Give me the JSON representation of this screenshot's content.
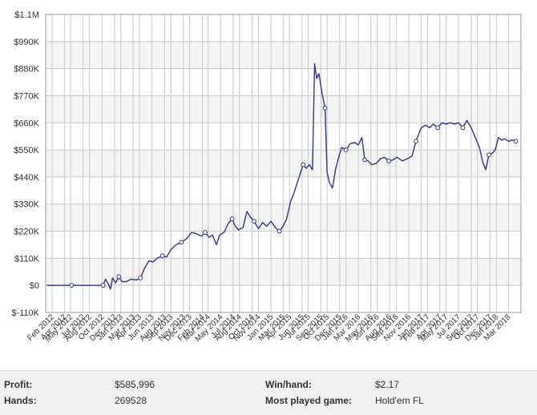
{
  "chart_data": {
    "type": "line",
    "title": "",
    "xlabel": "",
    "ylabel": "",
    "ylim": [
      -110000,
      1100000
    ],
    "xlim": [
      "2012-01-15",
      "2018-05-15"
    ],
    "yticks": [
      -110000,
      0,
      110000,
      220000,
      330000,
      440000,
      550000,
      660000,
      770000,
      880000,
      990000,
      1100000
    ],
    "ytick_labels": [
      "$-110K",
      "$0",
      "$110K",
      "$220K",
      "$330K",
      "$440K",
      "$550K",
      "$660K",
      "$770K",
      "$880K",
      "$990K",
      "$1.1M"
    ],
    "xticks": [
      "2012-02",
      "2012-04",
      "2012-05",
      "2012-07",
      "2012-08",
      "2012-10",
      "2012-12",
      "2013-01",
      "2013-03",
      "2013-04",
      "2013-06",
      "2013-08",
      "2013-09",
      "2013-11",
      "2013-12",
      "2014-02",
      "2014-03",
      "2014-05",
      "2014-07",
      "2014-08",
      "2014-10",
      "2014-11",
      "2015-01",
      "2015-03",
      "2015-04",
      "2015-06",
      "2015-07",
      "2015-09",
      "2015-10",
      "2015-12",
      "2016-01",
      "2016-03",
      "2016-05",
      "2016-06",
      "2016-08",
      "2016-09",
      "2016-11",
      "2017-01",
      "2017-02",
      "2017-04",
      "2017-05",
      "2017-07",
      "2017-09",
      "2017-10",
      "2017-12",
      "2018-01",
      "2018-03"
    ],
    "xtick_labels": [
      "Feb 2012",
      "Apr 2012",
      "May 2012",
      "Jul 2012",
      "Aug 2012",
      "Oct 2012",
      "Dec 2012",
      "Jan 2013",
      "Mar 2013",
      "Apr 2013",
      "Jun 2013",
      "Aug 2013",
      "Sep 2013",
      "Nov 2013",
      "Dec 2013",
      "Feb 2014",
      "Mar 2014",
      "May 2014",
      "Jul 2014",
      "Aug 2014",
      "Oct 2014",
      "Nov 2014",
      "Jan 2015",
      "Mar 2015",
      "Apr 2015",
      "Jun 2015",
      "Jul 2015",
      "Sep 2015",
      "Oct 2015",
      "Dec 2015",
      "Jan 2016",
      "Mar 2016",
      "May 2016",
      "Jun 2016",
      "Aug 2016",
      "Sep 2016",
      "Nov 2016",
      "Jan 2017",
      "Feb 2017",
      "Apr 2017",
      "May 2017",
      "Jul 2017",
      "Sep 2017",
      "Oct 2017",
      "Dec 2017",
      "Jan 2018",
      "Mar 2018"
    ],
    "grid": true,
    "legend": "none",
    "series": [
      {
        "name": "",
        "color": "#33338f",
        "points": [
          [
            "2012-01-20",
            0
          ],
          [
            "2012-05-20",
            0
          ],
          [
            "2012-10-20",
            0
          ],
          [
            "2012-11-01",
            25000
          ],
          [
            "2012-11-15",
            5000
          ],
          [
            "2012-11-25",
            -15000
          ],
          [
            "2012-12-05",
            30000
          ],
          [
            "2012-12-20",
            10000
          ],
          [
            "2013-01-05",
            35000
          ],
          [
            "2013-01-20",
            15000
          ],
          [
            "2013-02-10",
            15000
          ],
          [
            "2013-03-05",
            25000
          ],
          [
            "2013-04-01",
            22000
          ],
          [
            "2013-04-20",
            30000
          ],
          [
            "2013-05-10",
            70000
          ],
          [
            "2013-06-01",
            100000
          ],
          [
            "2013-06-20",
            95000
          ],
          [
            "2013-07-10",
            110000
          ],
          [
            "2013-08-05",
            120000
          ],
          [
            "2013-08-25",
            115000
          ],
          [
            "2013-09-15",
            145000
          ],
          [
            "2013-10-10",
            165000
          ],
          [
            "2013-11-05",
            175000
          ],
          [
            "2013-12-01",
            190000
          ],
          [
            "2013-12-25",
            215000
          ],
          [
            "2014-01-15",
            210000
          ],
          [
            "2014-02-10",
            200000
          ],
          [
            "2014-03-01",
            215000
          ],
          [
            "2014-03-20",
            195000
          ],
          [
            "2014-04-05",
            205000
          ],
          [
            "2014-04-25",
            165000
          ],
          [
            "2014-05-10",
            205000
          ],
          [
            "2014-06-01",
            215000
          ],
          [
            "2014-06-20",
            250000
          ],
          [
            "2014-07-10",
            270000
          ],
          [
            "2014-07-25",
            240000
          ],
          [
            "2014-08-10",
            225000
          ],
          [
            "2014-09-01",
            235000
          ],
          [
            "2014-09-20",
            300000
          ],
          [
            "2014-10-05",
            280000
          ],
          [
            "2014-10-25",
            260000
          ],
          [
            "2014-11-15",
            230000
          ],
          [
            "2014-12-05",
            255000
          ],
          [
            "2014-12-25",
            240000
          ],
          [
            "2015-01-15",
            260000
          ],
          [
            "2015-02-05",
            235000
          ],
          [
            "2015-02-25",
            220000
          ],
          [
            "2015-03-15",
            240000
          ],
          [
            "2015-04-01",
            270000
          ],
          [
            "2015-04-20",
            340000
          ],
          [
            "2015-05-05",
            370000
          ],
          [
            "2015-05-20",
            410000
          ],
          [
            "2015-06-05",
            450000
          ],
          [
            "2015-06-20",
            490000
          ],
          [
            "2015-07-05",
            475000
          ],
          [
            "2015-07-20",
            490000
          ],
          [
            "2015-08-05",
            470000
          ],
          [
            "2015-08-15",
            900000
          ],
          [
            "2015-08-25",
            840000
          ],
          [
            "2015-09-05",
            860000
          ],
          [
            "2015-09-20",
            780000
          ],
          [
            "2015-10-05",
            720000
          ],
          [
            "2015-10-15",
            460000
          ],
          [
            "2015-10-25",
            420000
          ],
          [
            "2015-11-10",
            395000
          ],
          [
            "2015-11-25",
            470000
          ],
          [
            "2015-12-10",
            520000
          ],
          [
            "2015-12-25",
            560000
          ],
          [
            "2016-01-15",
            550000
          ],
          [
            "2016-02-05",
            575000
          ],
          [
            "2016-02-25",
            580000
          ],
          [
            "2016-03-15",
            570000
          ],
          [
            "2016-04-01",
            600000
          ],
          [
            "2016-04-15",
            510000
          ],
          [
            "2016-05-01",
            505000
          ],
          [
            "2016-05-20",
            490000
          ],
          [
            "2016-06-10",
            495000
          ],
          [
            "2016-07-01",
            515000
          ],
          [
            "2016-07-20",
            520000
          ],
          [
            "2016-08-10",
            505000
          ],
          [
            "2016-09-01",
            510000
          ],
          [
            "2016-09-20",
            520000
          ],
          [
            "2016-10-15",
            505000
          ],
          [
            "2016-11-10",
            515000
          ],
          [
            "2016-12-01",
            525000
          ],
          [
            "2016-12-20",
            585000
          ],
          [
            "2017-01-15",
            640000
          ],
          [
            "2017-02-05",
            650000
          ],
          [
            "2017-02-25",
            640000
          ],
          [
            "2017-03-15",
            655000
          ],
          [
            "2017-04-05",
            640000
          ],
          [
            "2017-04-25",
            660000
          ],
          [
            "2017-05-15",
            655000
          ],
          [
            "2017-06-05",
            660000
          ],
          [
            "2017-06-25",
            655000
          ],
          [
            "2017-07-15",
            660000
          ],
          [
            "2017-08-05",
            640000
          ],
          [
            "2017-08-25",
            670000
          ],
          [
            "2017-09-15",
            640000
          ],
          [
            "2017-10-05",
            600000
          ],
          [
            "2017-10-25",
            560000
          ],
          [
            "2017-11-10",
            500000
          ],
          [
            "2017-11-25",
            470000
          ],
          [
            "2017-12-10",
            530000
          ],
          [
            "2017-12-25",
            535000
          ],
          [
            "2018-01-10",
            550000
          ],
          [
            "2018-01-25",
            600000
          ],
          [
            "2018-02-10",
            590000
          ],
          [
            "2018-02-25",
            595000
          ],
          [
            "2018-03-15",
            585000
          ],
          [
            "2018-04-05",
            590000
          ],
          [
            "2018-04-20",
            585000
          ]
        ],
        "markers": [
          [
            "2012-05-20",
            0
          ],
          [
            "2012-10-20",
            0
          ],
          [
            "2013-01-05",
            35000
          ],
          [
            "2013-04-20",
            30000
          ],
          [
            "2013-08-05",
            120000
          ],
          [
            "2013-11-05",
            175000
          ],
          [
            "2014-03-01",
            215000
          ],
          [
            "2014-07-10",
            270000
          ],
          [
            "2014-10-25",
            260000
          ],
          [
            "2015-02-25",
            220000
          ],
          [
            "2015-06-20",
            490000
          ],
          [
            "2015-10-05",
            720000
          ],
          [
            "2016-01-15",
            550000
          ],
          [
            "2016-04-15",
            510000
          ],
          [
            "2016-08-10",
            505000
          ],
          [
            "2016-12-20",
            585000
          ],
          [
            "2017-04-05",
            640000
          ],
          [
            "2017-08-05",
            640000
          ],
          [
            "2017-12-10",
            530000
          ],
          [
            "2018-04-20",
            585000
          ]
        ]
      }
    ]
  },
  "stats": {
    "profit_label": "Profit:",
    "profit_value": "$585,996",
    "winhand_label": "Win/hand:",
    "winhand_value": "$2.17",
    "hands_label": "Hands:",
    "hands_value": "269528",
    "game_label": "Most played game:",
    "game_value": "Hold'em FL"
  }
}
